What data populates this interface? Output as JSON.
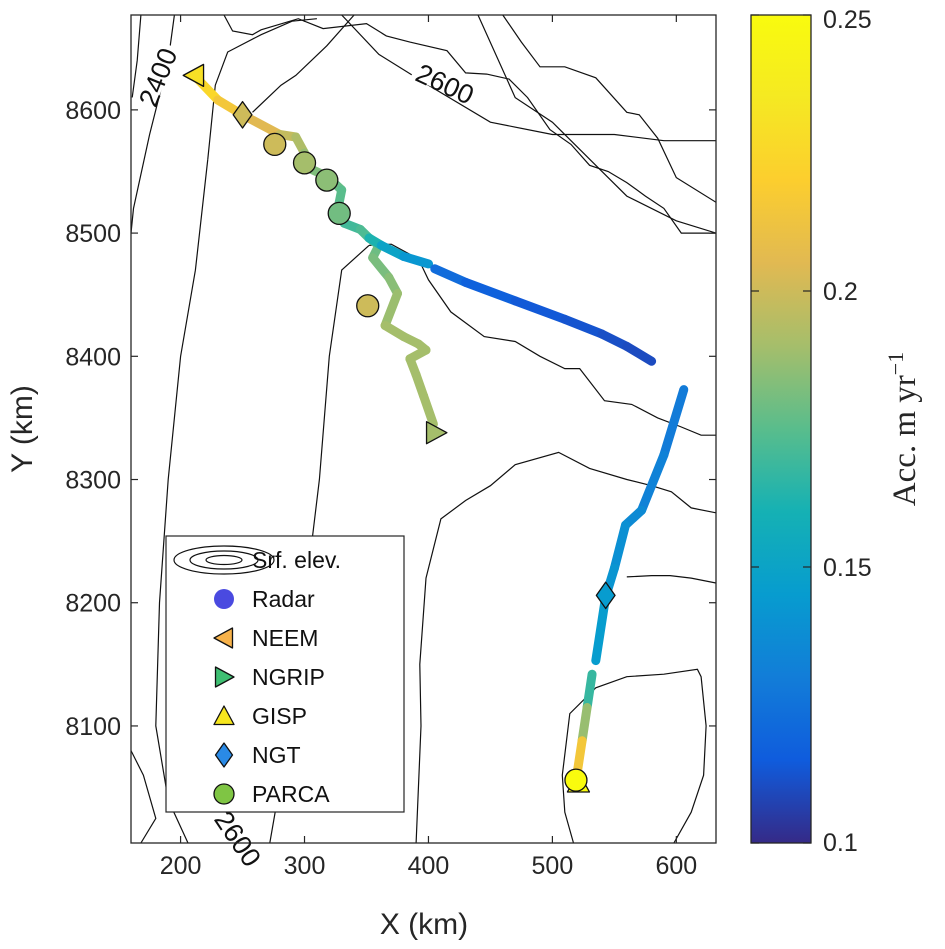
{
  "chart_data": {
    "type": "scatter",
    "xlabel": "X (km)",
    "ylabel": "Y (km)",
    "xlim": [
      160,
      632
    ],
    "ylim": [
      8005,
      8677
    ],
    "xticks": [
      200,
      300,
      400,
      500,
      600
    ],
    "yticks": [
      8100,
      8200,
      8300,
      8400,
      8500,
      8600
    ],
    "grid": false,
    "legend_position": "bottom-left",
    "colormap": "parula",
    "colorbar": {
      "label_main": "Acc. m yr",
      "label_sup": "−1",
      "range": [
        0.1,
        0.25
      ],
      "ticks": [
        0.1,
        0.15,
        0.2,
        0.25
      ]
    },
    "contours": [
      {
        "level": 2400,
        "label": "2400",
        "points": [
          [
            168,
            8677
          ],
          [
            165,
            8640
          ],
          [
            161,
            8610
          ]
        ]
      },
      {
        "level": 2600,
        "label": "2600",
        "points": [
          [
            235,
            8677
          ],
          [
            242,
            8664
          ],
          [
            258,
            8661
          ],
          [
            265,
            8665
          ],
          [
            295,
            8674
          ],
          [
            315,
            8666
          ],
          [
            350,
            8670
          ],
          [
            366,
            8660
          ],
          [
            385,
            8655
          ],
          [
            415,
            8648
          ],
          [
            430,
            8630
          ],
          [
            447,
            8629
          ],
          [
            465,
            8625
          ],
          [
            480,
            8610
          ],
          [
            498,
            8584
          ],
          [
            515,
            8572
          ],
          [
            530,
            8555
          ],
          [
            545,
            8550
          ],
          [
            560,
            8541
          ],
          [
            575,
            8530
          ],
          [
            590,
            8520
          ],
          [
            604,
            8500
          ],
          [
            632,
            8500
          ]
        ]
      },
      {
        "level": 2600,
        "label": "2600",
        "points": [
          [
            168,
            8005
          ],
          [
            180,
            8025
          ],
          [
            170,
            8060
          ],
          [
            160,
            8080
          ]
        ]
      },
      {
        "level": null,
        "label": "",
        "points": [
          [
            330,
            8677
          ],
          [
            360,
            8645
          ],
          [
            400,
            8620
          ],
          [
            450,
            8590
          ],
          [
            500,
            8580
          ],
          [
            550,
            8580
          ],
          [
            590,
            8575
          ],
          [
            620,
            8575
          ],
          [
            632,
            8575
          ]
        ]
      },
      {
        "level": null,
        "label": "",
        "points": [
          [
            460,
            8677
          ],
          [
            475,
            8655
          ],
          [
            490,
            8635
          ],
          [
            510,
            8635
          ],
          [
            535,
            8626
          ],
          [
            560,
            8598
          ],
          [
            570,
            8596
          ],
          [
            585,
            8577
          ],
          [
            600,
            8545
          ],
          [
            632,
            8525
          ]
        ]
      },
      {
        "level": null,
        "label": "",
        "points": [
          [
            195,
            8677
          ],
          [
            190,
            8640
          ],
          [
            175,
            8580
          ],
          [
            162,
            8520
          ],
          [
            160,
            8500
          ]
        ]
      },
      {
        "level": null,
        "label": "",
        "points": [
          [
            222,
            8560
          ],
          [
            228,
            8620
          ],
          [
            238,
            8647
          ],
          [
            265,
            8661
          ],
          [
            290,
            8672
          ],
          [
            310,
            8674
          ]
        ]
      },
      {
        "level": null,
        "label": "",
        "points": [
          [
            222,
            8560
          ],
          [
            212,
            8470
          ],
          [
            200,
            8400
          ],
          [
            190,
            8300
          ],
          [
            183,
            8200
          ],
          [
            180,
            8100
          ],
          [
            190,
            8040
          ],
          [
            206,
            8005
          ]
        ]
      },
      {
        "level": null,
        "label": "",
        "points": [
          [
            340,
            8677
          ],
          [
            318,
            8652
          ],
          [
            293,
            8628
          ],
          [
            281,
            8620
          ],
          [
            258,
            8598
          ]
        ]
      },
      {
        "level": null,
        "label": "",
        "points": [
          [
            352,
            8490
          ],
          [
            330,
            8470
          ],
          [
            320,
            8400
          ],
          [
            312,
            8300
          ],
          [
            300,
            8200
          ],
          [
            285,
            8100
          ],
          [
            278,
            8040
          ],
          [
            272,
            8005
          ]
        ]
      },
      {
        "level": null,
        "label": "",
        "points": [
          [
            352,
            8490
          ],
          [
            370,
            8491
          ],
          [
            392,
            8479
          ],
          [
            400,
            8462
          ],
          [
            418,
            8436
          ],
          [
            445,
            8416
          ],
          [
            470,
            8412
          ],
          [
            490,
            8400
          ],
          [
            510,
            8390
          ],
          [
            522,
            8390
          ],
          [
            542,
            8364
          ],
          [
            564,
            8361
          ],
          [
            585,
            8350
          ],
          [
            603,
            8343
          ],
          [
            620,
            8336
          ],
          [
            632,
            8336
          ]
        ]
      },
      {
        "level": null,
        "label": "",
        "points": [
          [
            440,
            8677
          ],
          [
            470,
            8610
          ],
          [
            500,
            8590
          ],
          [
            530,
            8560
          ],
          [
            560,
            8530
          ],
          [
            600,
            8510
          ],
          [
            632,
            8500
          ]
        ]
      },
      {
        "level": null,
        "label": "",
        "points": [
          [
            632,
            8273
          ],
          [
            612,
            8277
          ],
          [
            596,
            8290
          ],
          [
            580,
            8295
          ],
          [
            560,
            8300
          ],
          [
            530,
            8309
          ],
          [
            505,
            8322
          ],
          [
            470,
            8312
          ],
          [
            450,
            8295
          ],
          [
            430,
            8283
          ],
          [
            410,
            8268
          ],
          [
            398,
            8220
          ],
          [
            393,
            8150
          ],
          [
            394,
            8100
          ],
          [
            390,
            8005
          ]
        ]
      },
      {
        "level": null,
        "label": "",
        "points": [
          [
            632,
            8216
          ],
          [
            612,
            8220
          ],
          [
            595,
            8222
          ],
          [
            580,
            8222
          ],
          [
            560,
            8221
          ]
        ]
      },
      {
        "level": null,
        "label": "",
        "points": [
          [
            517,
            8005
          ],
          [
            510,
            8030
          ],
          [
            508,
            8060
          ],
          [
            514,
            8110
          ],
          [
            535,
            8131
          ],
          [
            560,
            8140
          ],
          [
            590,
            8142
          ],
          [
            617,
            8146
          ],
          [
            620,
            8140
          ],
          [
            624,
            8100
          ],
          [
            622,
            8060
          ],
          [
            612,
            8030
          ],
          [
            598,
            8005
          ]
        ]
      }
    ],
    "radar_segments": [
      {
        "points": [
          [
            212,
            8627
          ],
          [
            230,
            8608
          ],
          [
            250,
            8596
          ],
          [
            280,
            8580
          ],
          [
            293,
            8578
          ],
          [
            300,
            8565
          ],
          [
            305,
            8552
          ],
          [
            318,
            8546
          ],
          [
            330,
            8535
          ],
          [
            327,
            8520
          ],
          [
            332,
            8508
          ],
          [
            345,
            8503
          ],
          [
            352,
            8496
          ],
          [
            360,
            8490
          ],
          [
            355,
            8480
          ],
          [
            368,
            8464
          ],
          [
            375,
            8451
          ],
          [
            365,
            8425
          ],
          [
            380,
            8416
          ],
          [
            392,
            8410
          ],
          [
            398,
            8405
          ],
          [
            385,
            8398
          ],
          [
            390,
            8385
          ],
          [
            396,
            8368
          ],
          [
            404,
            8345
          ]
        ],
        "values": [
          0.23,
          0.22,
          0.21,
          0.2,
          0.195,
          0.19,
          0.185,
          0.18,
          0.175,
          0.175,
          0.17,
          0.17,
          0.175,
          0.178,
          0.18,
          0.183,
          0.186,
          0.19,
          0.19,
          0.19,
          0.19,
          0.19,
          0.19,
          0.19,
          0.19
        ]
      },
      {
        "points": [
          [
            352,
            8496
          ],
          [
            362,
            8490
          ],
          [
            380,
            8481
          ],
          [
            400,
            8475
          ]
        ],
        "values": [
          0.168,
          0.155,
          0.145,
          0.14
        ]
      },
      {
        "points": [
          [
            405,
            8471
          ],
          [
            430,
            8460
          ],
          [
            470,
            8445
          ],
          [
            510,
            8430
          ],
          [
            540,
            8418
          ],
          [
            560,
            8408
          ],
          [
            580,
            8396
          ]
        ],
        "values": [
          0.125,
          0.12,
          0.115,
          0.113,
          0.112,
          0.11,
          0.11
        ]
      },
      {
        "points": [
          [
            606,
            8373
          ],
          [
            590,
            8320
          ],
          [
            572,
            8275
          ],
          [
            559,
            8263
          ],
          [
            550,
            8228
          ],
          [
            543,
            8205
          ],
          [
            535,
            8153
          ]
        ],
        "values": [
          0.128,
          0.13,
          0.135,
          0.138,
          0.14,
          0.143,
          0.148
        ]
      },
      {
        "points": [
          [
            532,
            8142
          ],
          [
            528,
            8115
          ],
          [
            524,
            8088
          ],
          [
            520,
            8062
          ]
        ],
        "values": [
          0.16,
          0.175,
          0.2,
          0.23
        ]
      }
    ],
    "series": [
      {
        "name": "Radar",
        "marker": "circle",
        "color": "#4a4ae0",
        "points": []
      },
      {
        "name": "NEEM",
        "marker": "triangle-left",
        "color": "#f7b24a",
        "points": [
          {
            "x": 211,
            "y": 8628,
            "value": 0.23
          }
        ]
      },
      {
        "name": "NGRIP",
        "marker": "triangle-right",
        "color": "#3ebf72",
        "points": [
          {
            "x": 406,
            "y": 8338,
            "value": 0.19
          }
        ]
      },
      {
        "name": "GISP",
        "marker": "triangle-up",
        "color": "#f6e61e",
        "points": [
          {
            "x": 521,
            "y": 8054,
            "value": 0.25
          }
        ]
      },
      {
        "name": "NGT",
        "marker": "diamond",
        "color": "#2a8ae6",
        "points": [
          {
            "x": 250,
            "y": 8596,
            "value": 0.2
          },
          {
            "x": 543,
            "y": 8206,
            "value": 0.145
          }
        ]
      },
      {
        "name": "PARCA",
        "marker": "circle",
        "color": "#7fc544",
        "points": [
          {
            "x": 276,
            "y": 8572,
            "value": 0.2
          },
          {
            "x": 300,
            "y": 8557,
            "value": 0.19
          },
          {
            "x": 318,
            "y": 8543,
            "value": 0.185
          },
          {
            "x": 328,
            "y": 8516,
            "value": 0.18
          },
          {
            "x": 351,
            "y": 8441,
            "value": 0.2
          },
          {
            "x": 519,
            "y": 8056,
            "value": 0.25
          }
        ]
      }
    ],
    "legend": {
      "entries": [
        "Srf. elev.",
        "Radar",
        "NEEM",
        "NGRIP",
        "GISP",
        "NGT",
        "PARCA"
      ]
    }
  }
}
